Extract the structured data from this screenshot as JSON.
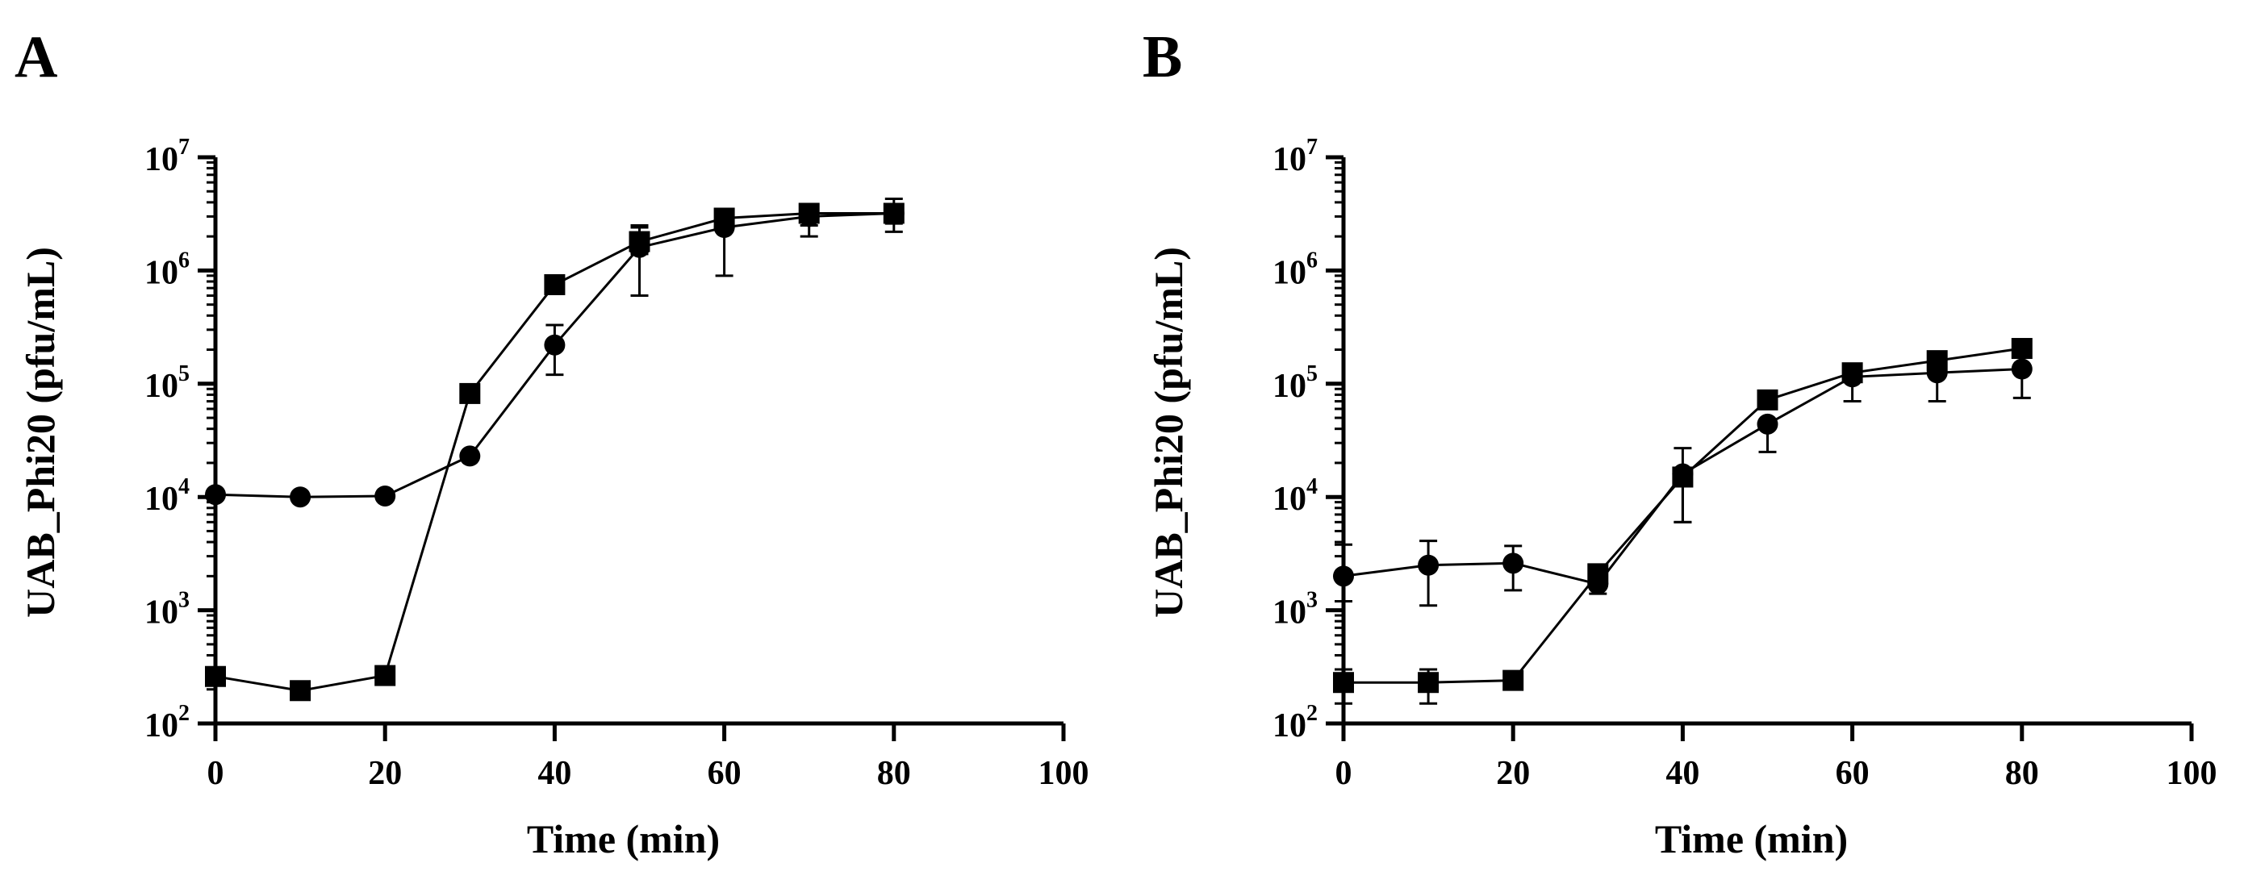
{
  "chart_data": [
    {
      "type": "line",
      "panel": "A",
      "title": "",
      "xlabel": "Time (min)",
      "ylabel": "UAB_Phi20 (pfu/mL)",
      "yscale": "log",
      "xlim": [
        0,
        100
      ],
      "ylim": [
        100,
        10000000
      ],
      "x_ticks": [
        0,
        20,
        40,
        60,
        80,
        100
      ],
      "x_tick_labels": [
        "0",
        "20",
        "40",
        "60",
        "80",
        "100"
      ],
      "y_ticks": [
        {
          "value": 100,
          "base": "10",
          "exp": "2"
        },
        {
          "value": 1000,
          "base": "10",
          "exp": "3"
        },
        {
          "value": 10000,
          "base": "10",
          "exp": "4"
        },
        {
          "value": 100000,
          "base": "10",
          "exp": "5"
        },
        {
          "value": 1000000,
          "base": "10",
          "exp": "6"
        },
        {
          "value": 10000000,
          "base": "10",
          "exp": "7"
        }
      ],
      "series": [
        {
          "name": "circle series",
          "marker": "circle",
          "x": [
            0,
            10,
            20,
            30,
            40,
            50,
            60,
            70,
            80
          ],
          "values": [
            10500,
            10000,
            10200,
            23000,
            220000,
            1600000,
            2400000,
            3000000,
            3200000
          ],
          "err_low": [
            null,
            null,
            null,
            null,
            120000,
            600000,
            900000,
            2000000,
            2200000
          ],
          "err_high": [
            null,
            null,
            null,
            null,
            330000,
            2500000,
            3400000,
            3600000,
            4300000
          ]
        },
        {
          "name": "square series",
          "marker": "square",
          "x": [
            0,
            10,
            20,
            30,
            40,
            50,
            60,
            70,
            80
          ],
          "values": [
            260,
            195,
            265,
            82000,
            750000,
            1800000,
            2900000,
            3200000,
            3200000
          ],
          "err_low": [
            null,
            null,
            null,
            null,
            null,
            1400000,
            2400000,
            2500000,
            2600000
          ],
          "err_high": [
            null,
            null,
            null,
            null,
            null,
            2400000,
            3500000,
            3700000,
            3800000
          ]
        }
      ]
    },
    {
      "type": "line",
      "panel": "B",
      "title": "",
      "xlabel": "Time (min)",
      "ylabel": "UAB_Phi20 (pfu/mL)",
      "yscale": "log",
      "xlim": [
        0,
        100
      ],
      "ylim": [
        100,
        10000000
      ],
      "x_ticks": [
        0,
        20,
        40,
        60,
        80,
        100
      ],
      "x_tick_labels": [
        "0",
        "20",
        "40",
        "60",
        "80",
        "100"
      ],
      "y_ticks": [
        {
          "value": 100,
          "base": "10",
          "exp": "2"
        },
        {
          "value": 1000,
          "base": "10",
          "exp": "3"
        },
        {
          "value": 10000,
          "base": "10",
          "exp": "4"
        },
        {
          "value": 100000,
          "base": "10",
          "exp": "5"
        },
        {
          "value": 1000000,
          "base": "10",
          "exp": "6"
        },
        {
          "value": 10000000,
          "base": "10",
          "exp": "7"
        }
      ],
      "series": [
        {
          "name": "circle series",
          "marker": "circle",
          "x": [
            0,
            10,
            20,
            30,
            40,
            50,
            60,
            70,
            80
          ],
          "values": [
            2000,
            2500,
            2600,
            1700,
            16000,
            44000,
            115000,
            125000,
            135000
          ],
          "err_low": [
            1200,
            1100,
            1500,
            1400,
            6000,
            25000,
            70000,
            70000,
            75000
          ],
          "err_high": [
            3800,
            4100,
            3700,
            null,
            27000,
            null,
            null,
            null,
            null
          ]
        },
        {
          "name": "square series",
          "marker": "square",
          "x": [
            0,
            10,
            20,
            30,
            40,
            50,
            60,
            70,
            80
          ],
          "values": [
            230,
            230,
            240,
            2100,
            15000,
            72000,
            125000,
            160000,
            205000
          ],
          "err_low": [
            150,
            150,
            null,
            null,
            6000,
            null,
            null,
            null,
            null
          ],
          "err_high": [
            300,
            300,
            null,
            null,
            null,
            null,
            null,
            null,
            null
          ]
        }
      ]
    }
  ]
}
